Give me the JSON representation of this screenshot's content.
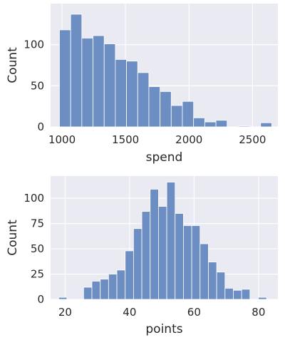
{
  "chart_data": [
    {
      "type": "histogram",
      "xlabel": "spend",
      "ylabel": "Count",
      "xlim": [
        910,
        2700
      ],
      "ylim": [
        0,
        150
      ],
      "xticks": [
        1000,
        1500,
        2000,
        2500
      ],
      "yticks": [
        0,
        50,
        100
      ],
      "grid": true,
      "bins": [
        {
          "x0": 980,
          "x1": 1068,
          "count": 118
        },
        {
          "x0": 1068,
          "x1": 1156,
          "count": 137
        },
        {
          "x0": 1156,
          "x1": 1244,
          "count": 108
        },
        {
          "x0": 1244,
          "x1": 1332,
          "count": 111
        },
        {
          "x0": 1332,
          "x1": 1420,
          "count": 101
        },
        {
          "x0": 1420,
          "x1": 1508,
          "count": 82
        },
        {
          "x0": 1508,
          "x1": 1596,
          "count": 80
        },
        {
          "x0": 1596,
          "x1": 1684,
          "count": 66
        },
        {
          "x0": 1684,
          "x1": 1772,
          "count": 49
        },
        {
          "x0": 1772,
          "x1": 1860,
          "count": 43
        },
        {
          "x0": 1860,
          "x1": 1948,
          "count": 26
        },
        {
          "x0": 1948,
          "x1": 2036,
          "count": 31
        },
        {
          "x0": 2036,
          "x1": 2124,
          "count": 11
        },
        {
          "x0": 2124,
          "x1": 2212,
          "count": 6
        },
        {
          "x0": 2212,
          "x1": 2300,
          "count": 8
        },
        {
          "x0": 2300,
          "x1": 2388,
          "count": 0
        },
        {
          "x0": 2388,
          "x1": 2476,
          "count": 1
        },
        {
          "x0": 2476,
          "x1": 2564,
          "count": 0
        },
        {
          "x0": 2564,
          "x1": 2652,
          "count": 5
        }
      ]
    },
    {
      "type": "histogram",
      "xlabel": "points",
      "ylabel": "Count",
      "xlim": [
        15.5,
        86
      ],
      "ylim": [
        0,
        122
      ],
      "xticks": [
        20,
        40,
        60,
        80
      ],
      "yticks": [
        0,
        25,
        50,
        75,
        100
      ],
      "grid": true,
      "bins": [
        {
          "x0": 18.0,
          "x1": 20.58,
          "count": 2
        },
        {
          "x0": 20.58,
          "x1": 23.16,
          "count": 0
        },
        {
          "x0": 23.16,
          "x1": 25.74,
          "count": 0
        },
        {
          "x0": 25.74,
          "x1": 28.32,
          "count": 12
        },
        {
          "x0": 28.32,
          "x1": 30.9,
          "count": 18
        },
        {
          "x0": 30.9,
          "x1": 33.48,
          "count": 20
        },
        {
          "x0": 33.48,
          "x1": 36.06,
          "count": 25
        },
        {
          "x0": 36.06,
          "x1": 38.64,
          "count": 29
        },
        {
          "x0": 38.64,
          "x1": 41.22,
          "count": 48
        },
        {
          "x0": 41.22,
          "x1": 43.8,
          "count": 70
        },
        {
          "x0": 43.8,
          "x1": 46.38,
          "count": 87
        },
        {
          "x0": 46.38,
          "x1": 48.96,
          "count": 109
        },
        {
          "x0": 48.96,
          "x1": 51.54,
          "count": 92
        },
        {
          "x0": 51.54,
          "x1": 54.12,
          "count": 116
        },
        {
          "x0": 54.12,
          "x1": 56.7,
          "count": 85
        },
        {
          "x0": 56.7,
          "x1": 59.28,
          "count": 73
        },
        {
          "x0": 59.28,
          "x1": 61.86,
          "count": 73
        },
        {
          "x0": 61.86,
          "x1": 64.44,
          "count": 55
        },
        {
          "x0": 64.44,
          "x1": 67.02,
          "count": 37
        },
        {
          "x0": 67.02,
          "x1": 69.6,
          "count": 27
        },
        {
          "x0": 69.6,
          "x1": 72.18,
          "count": 11
        },
        {
          "x0": 72.18,
          "x1": 74.76,
          "count": 9
        },
        {
          "x0": 74.76,
          "x1": 77.34,
          "count": 10
        },
        {
          "x0": 77.34,
          "x1": 79.92,
          "count": 0
        },
        {
          "x0": 79.92,
          "x1": 82.5,
          "count": 2
        }
      ]
    }
  ]
}
